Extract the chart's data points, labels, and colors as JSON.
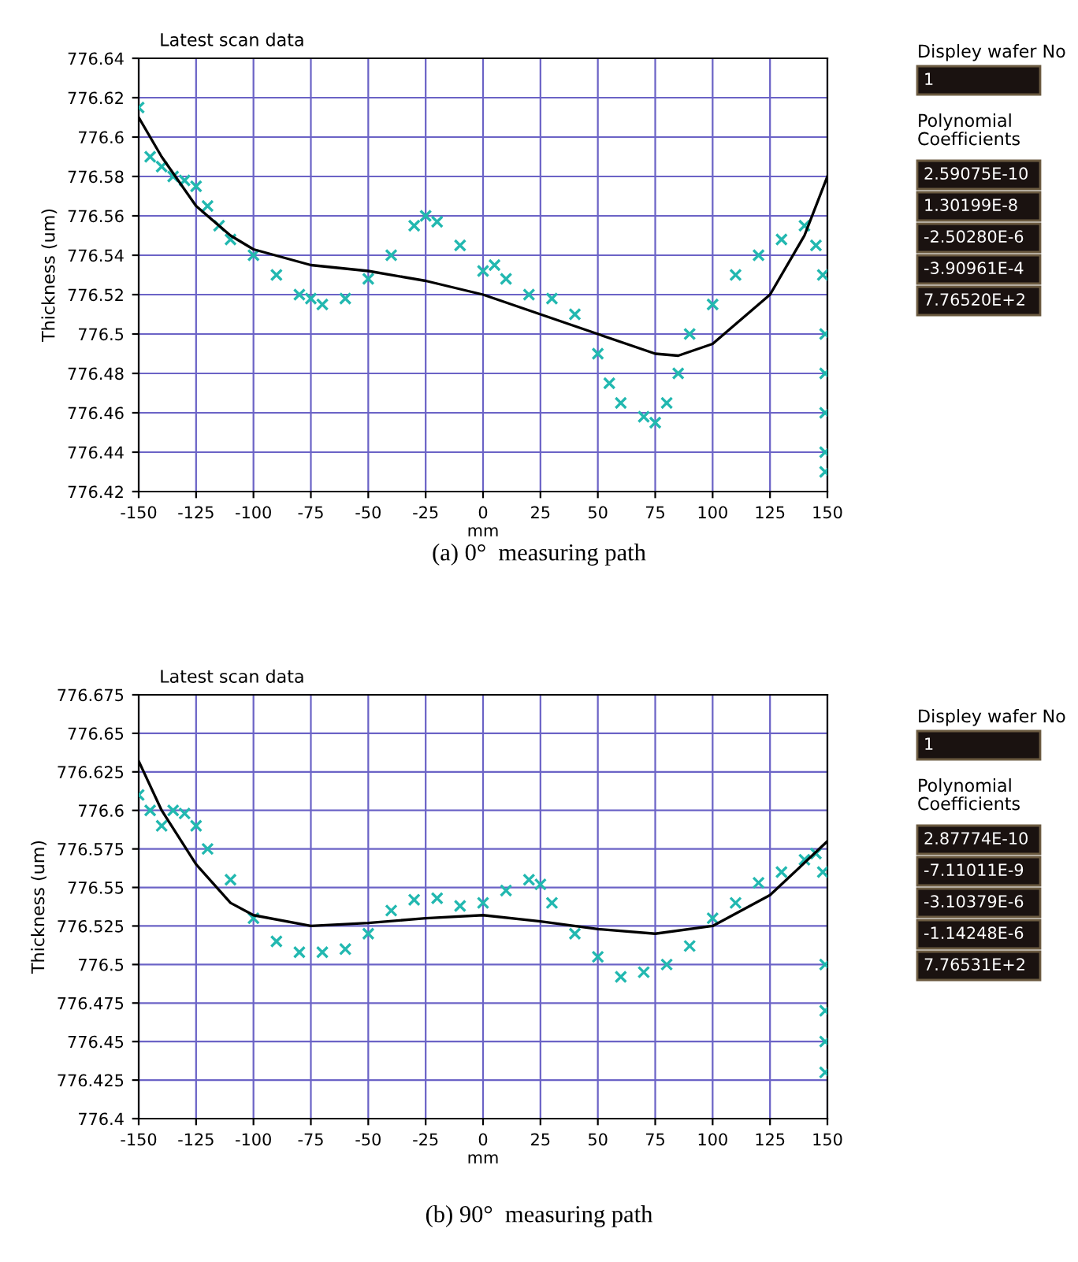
{
  "chart_data": [
    {
      "type": "scatter",
      "title": "Latest scan data",
      "xlabel": "mm",
      "ylabel": "Thickness (um)",
      "annotations": [
        "(a) 0°  measuring path"
      ],
      "grid": true,
      "xlim": [
        -150,
        150
      ],
      "xticks": [
        -150,
        -125,
        -100,
        -75,
        -50,
        -25,
        0,
        25,
        50,
        75,
        100,
        125,
        150
      ],
      "ylim": [
        776.42,
        776.64
      ],
      "yticks": [
        776.42,
        776.44,
        776.46,
        776.48,
        776.5,
        776.52,
        776.54,
        776.56,
        776.58,
        776.6,
        776.62,
        776.64
      ],
      "series": [
        {
          "type": "scatter",
          "marker": "cross",
          "color": "#22b8b0",
          "x": [
            -150,
            -145,
            -140,
            -135,
            -130,
            -125,
            -120,
            -115,
            -110,
            -100,
            -90,
            -80,
            -75,
            -70,
            -60,
            -50,
            -40,
            -30,
            -25,
            -20,
            -10,
            0,
            5,
            10,
            20,
            30,
            40,
            50,
            55,
            60,
            70,
            75,
            80,
            85,
            90,
            100,
            110,
            120,
            130,
            140,
            145,
            148,
            149,
            149,
            149,
            149,
            149
          ],
          "values": [
            776.615,
            776.59,
            776.585,
            776.58,
            776.578,
            776.575,
            776.565,
            776.555,
            776.548,
            776.54,
            776.53,
            776.52,
            776.518,
            776.515,
            776.518,
            776.528,
            776.54,
            776.555,
            776.56,
            776.557,
            776.545,
            776.532,
            776.535,
            776.528,
            776.52,
            776.518,
            776.51,
            776.49,
            776.475,
            776.465,
            776.458,
            776.455,
            776.465,
            776.48,
            776.5,
            776.515,
            776.53,
            776.54,
            776.548,
            776.555,
            776.545,
            776.53,
            776.5,
            776.48,
            776.46,
            776.44,
            776.43
          ]
        },
        {
          "type": "line",
          "color": "#000000",
          "x": [
            -150,
            -140,
            -125,
            -110,
            -100,
            -75,
            -50,
            -25,
            0,
            25,
            50,
            75,
            85,
            100,
            125,
            140,
            150
          ],
          "values": [
            776.61,
            776.59,
            776.565,
            776.55,
            776.543,
            776.535,
            776.532,
            776.527,
            776.52,
            776.51,
            776.5,
            776.49,
            776.489,
            776.495,
            776.52,
            776.55,
            776.58
          ]
        }
      ]
    },
    {
      "type": "other",
      "title": "Displey wafer No",
      "annotations": [
        "1",
        "Polynomial Coefficients",
        "2.59075E-10",
        "1.30199E-8",
        "-2.50280E-6",
        "-3.90961E-4",
        "7.76520E+2"
      ]
    },
    {
      "type": "scatter",
      "title": "Latest scan data",
      "xlabel": "mm",
      "ylabel": "Thickness (um)",
      "annotations": [
        "(b) 90°  measuring path"
      ],
      "grid": true,
      "xlim": [
        -150,
        150
      ],
      "xticks": [
        -150,
        -125,
        -100,
        -75,
        -50,
        -25,
        0,
        25,
        50,
        75,
        100,
        125,
        150
      ],
      "ylim": [
        776.4,
        776.675
      ],
      "yticks": [
        776.4,
        776.425,
        776.45,
        776.475,
        776.5,
        776.525,
        776.55,
        776.575,
        776.6,
        776.625,
        776.65,
        776.675
      ],
      "series": [
        {
          "type": "scatter",
          "marker": "cross",
          "color": "#22b8b0",
          "x": [
            -150,
            -145,
            -140,
            -135,
            -130,
            -125,
            -120,
            -110,
            -100,
            -90,
            -80,
            -70,
            -60,
            -50,
            -40,
            -30,
            -20,
            -10,
            0,
            10,
            20,
            25,
            30,
            40,
            50,
            60,
            70,
            80,
            90,
            100,
            110,
            120,
            130,
            140,
            145,
            148,
            149,
            149,
            149,
            149
          ],
          "values": [
            776.61,
            776.6,
            776.59,
            776.6,
            776.598,
            776.59,
            776.575,
            776.555,
            776.53,
            776.515,
            776.508,
            776.508,
            776.51,
            776.52,
            776.535,
            776.542,
            776.543,
            776.538,
            776.54,
            776.548,
            776.555,
            776.552,
            776.54,
            776.52,
            776.505,
            776.492,
            776.495,
            776.5,
            776.512,
            776.53,
            776.54,
            776.553,
            776.56,
            776.568,
            776.572,
            776.56,
            776.5,
            776.47,
            776.45,
            776.43
          ]
        },
        {
          "type": "line",
          "color": "#000000",
          "x": [
            -150,
            -140,
            -125,
            -110,
            -100,
            -75,
            -50,
            -25,
            0,
            25,
            50,
            75,
            100,
            125,
            150
          ],
          "values": [
            776.632,
            776.6,
            776.565,
            776.54,
            776.532,
            776.525,
            776.527,
            776.53,
            776.532,
            776.528,
            776.523,
            776.52,
            776.525,
            776.545,
            776.58
          ]
        }
      ]
    },
    {
      "type": "other",
      "title": "Displey wafer No",
      "annotations": [
        "1",
        "Polynomial Coefficients",
        "2.87774E-10",
        "-7.11011E-9",
        "-3.10379E-6",
        "-1.14248E-6",
        "7.76531E+2"
      ]
    }
  ]
}
